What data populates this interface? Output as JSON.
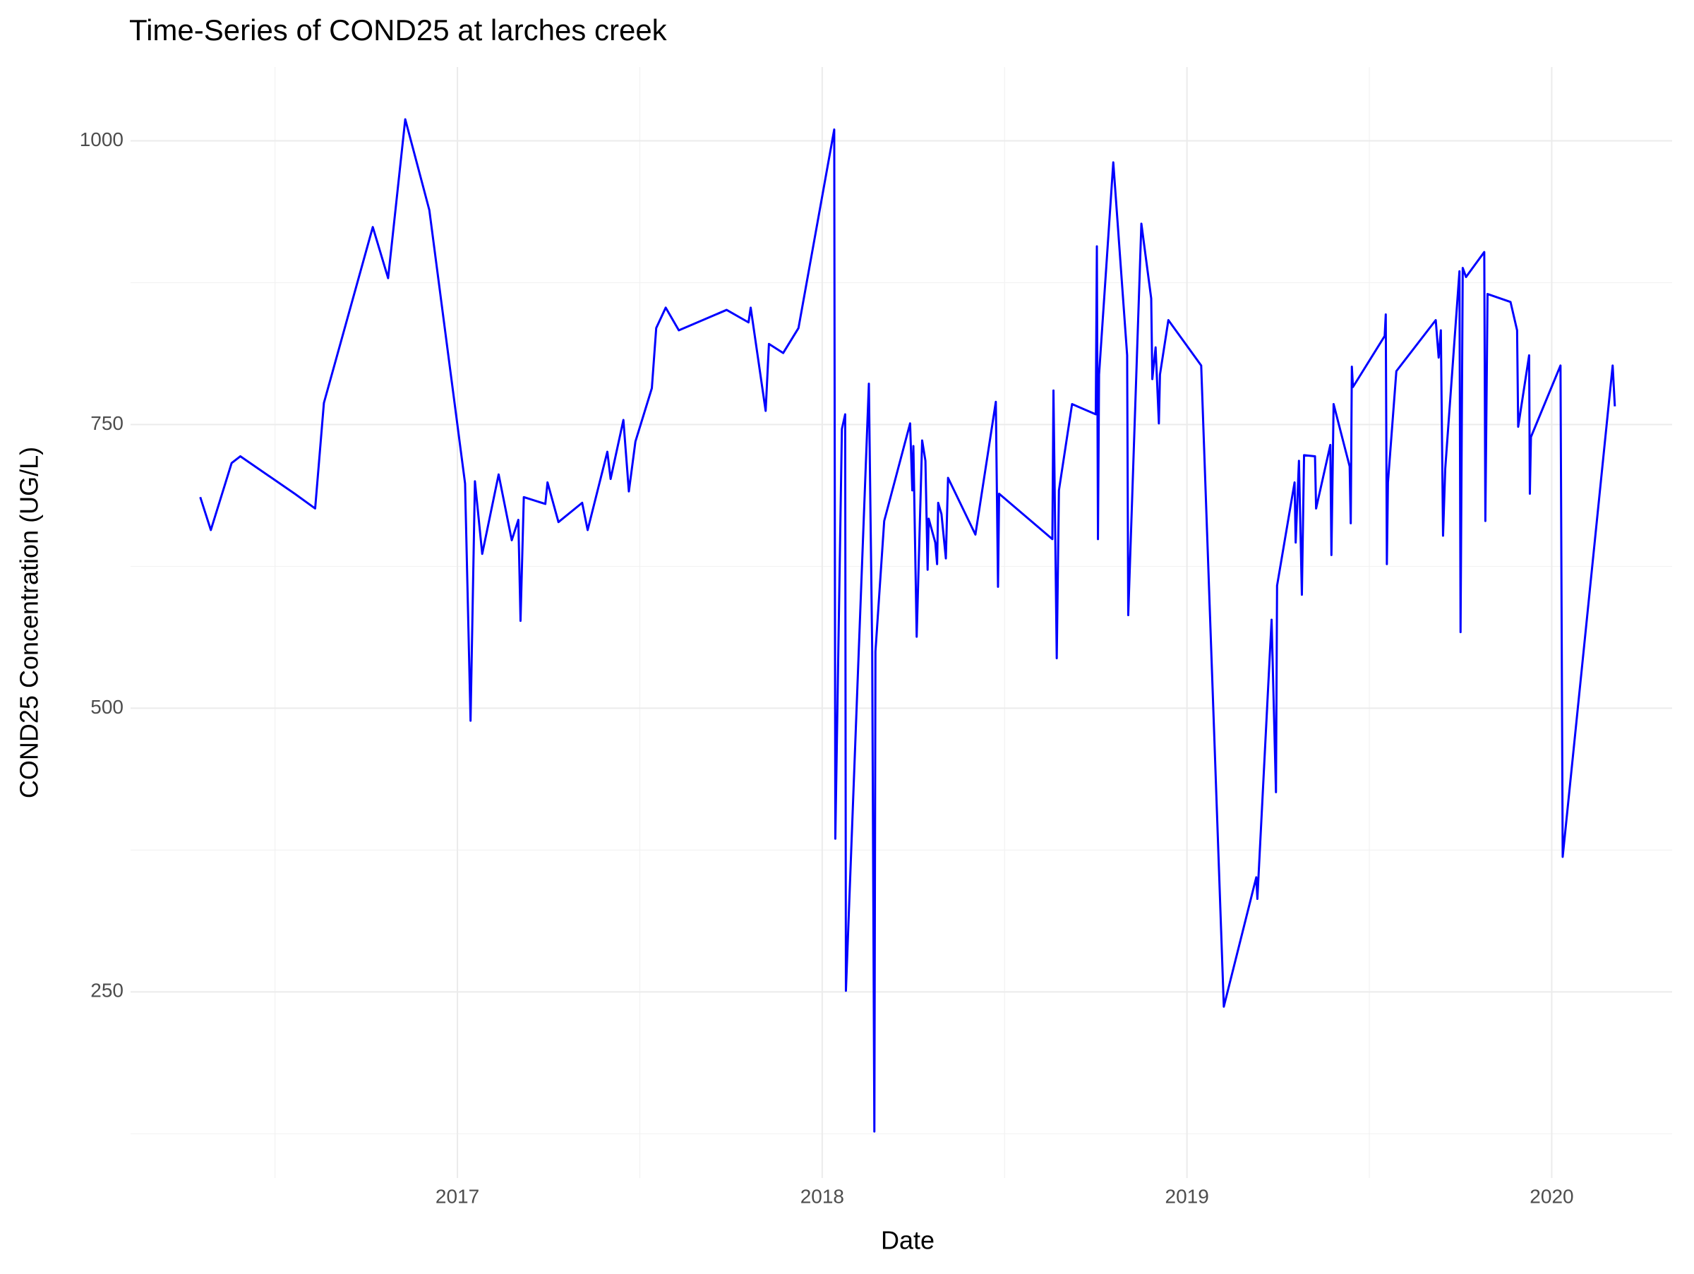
{
  "chart_data": {
    "type": "line",
    "title": "Time-Series of COND25 at larches creek",
    "x_label": "Date",
    "y_label": "COND25 Concentration (UG/L)",
    "x": [
      2016.295,
      2016.324,
      2016.381,
      2016.405,
      2016.554,
      2016.61,
      2016.634,
      2016.768,
      2016.81,
      2016.857,
      2016.923,
      2017.021,
      2017.036,
      2017.048,
      2017.068,
      2017.113,
      2017.149,
      2017.167,
      2017.173,
      2017.182,
      2017.241,
      2017.247,
      2017.277,
      2017.342,
      2017.357,
      2017.411,
      2017.42,
      2017.455,
      2017.47,
      2017.488,
      2017.533,
      2017.545,
      2017.571,
      2017.607,
      2017.738,
      2017.798,
      2017.804,
      2017.845,
      2017.854,
      2017.893,
      2017.935,
      2018.033,
      2018.036,
      2018.054,
      2018.063,
      2018.065,
      2018.128,
      2018.137,
      2018.143,
      2018.146,
      2018.17,
      2018.241,
      2018.247,
      2018.25,
      2018.259,
      2018.274,
      2018.283,
      2018.289,
      2018.292,
      2018.31,
      2018.315,
      2018.318,
      2018.327,
      2018.339,
      2018.345,
      2018.42,
      2018.476,
      2018.482,
      2018.485,
      2018.631,
      2018.634,
      2018.643,
      2018.649,
      2018.685,
      2018.75,
      2018.753,
      2018.756,
      2018.759,
      2018.798,
      2018.836,
      2018.839,
      2018.875,
      2018.902,
      2018.905,
      2018.914,
      2018.923,
      2018.926,
      2018.949,
      2019.039,
      2019.101,
      2019.19,
      2019.193,
      2019.232,
      2019.244,
      2019.247,
      2019.295,
      2019.298,
      2019.307,
      2019.315,
      2019.321,
      2019.351,
      2019.354,
      2019.393,
      2019.396,
      2019.402,
      2019.446,
      2019.449,
      2019.452,
      2019.455,
      2019.542,
      2019.545,
      2019.548,
      2019.551,
      2019.574,
      2019.682,
      2019.69,
      2019.696,
      2019.702,
      2019.708,
      2019.747,
      2019.75,
      2019.756,
      2019.765,
      2019.815,
      2019.818,
      2019.824,
      2019.887,
      2019.905,
      2019.908,
      2019.938,
      2019.94,
      2019.943,
      2020.024,
      2020.03,
      2020.167,
      2020.173
    ],
    "series": [
      {
        "name": "COND25",
        "color": "#0000ff",
        "values": [
          686,
          657,
          716,
          722,
          689,
          676,
          769,
          924,
          879,
          1019,
          939,
          698,
          489,
          700,
          636,
          706,
          648,
          666,
          577,
          686,
          680,
          699,
          664,
          681,
          657,
          726,
          702,
          754,
          691,
          735,
          782,
          835,
          853,
          833,
          851,
          840,
          853,
          762,
          821,
          813,
          835,
          1010,
          385,
          746,
          759,
          251,
          786,
          553,
          127,
          550,
          665,
          751,
          692,
          731,
          563,
          736,
          718,
          622,
          667,
          646,
          627,
          681,
          671,
          632,
          703,
          653,
          770,
          607,
          689,
          649,
          780,
          544,
          692,
          768,
          759,
          907,
          649,
          794,
          981,
          811,
          582,
          927,
          861,
          790,
          818,
          751,
          794,
          842,
          802,
          237,
          351,
          332,
          578,
          426,
          608,
          699,
          646,
          718,
          600,
          723,
          722,
          676,
          732,
          635,
          768,
          713,
          663,
          801,
          783,
          828,
          847,
          627,
          699,
          797,
          842,
          809,
          833,
          652,
          711,
          885,
          567,
          888,
          880,
          902,
          665,
          865,
          858,
          833,
          748,
          811,
          689,
          739,
          802,
          369,
          802,
          766
        ]
      }
    ],
    "xlim": [
      2016.104,
      2020.33
    ],
    "xticks": [
      2017,
      2018,
      2019,
      2020
    ],
    "x_minor_ticks": [
      2016.5,
      2017.5,
      2018.5,
      2019.5
    ],
    "ylim": [
      86,
      1065
    ],
    "yticks": [
      250,
      500,
      750,
      1000
    ],
    "y_minor_ticks": [
      125,
      375,
      625,
      875
    ],
    "grid": true
  }
}
